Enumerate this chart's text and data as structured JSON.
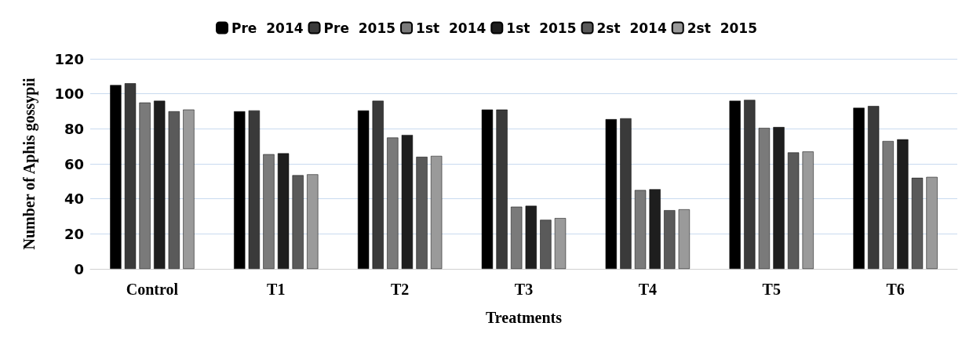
{
  "chart_data": {
    "type": "bar",
    "xlabel": "Treatments",
    "ylabel": "Number of Aphis gossypii",
    "categories": [
      "Control",
      "T1",
      "T2",
      "T3",
      "T4",
      "T5",
      "T6"
    ],
    "ylim": [
      0,
      120
    ],
    "yticks": [
      0,
      20,
      40,
      60,
      80,
      100,
      120
    ],
    "grid": "y",
    "legend": "top",
    "series": [
      {
        "name": "Pre  2014",
        "color": "#000000",
        "values": [
          105,
          90,
          90.5,
          91,
          85.5,
          96,
          92
        ]
      },
      {
        "name": "Pre  2015",
        "color": "#3a3a3a",
        "values": [
          106,
          90.5,
          96,
          91,
          86,
          96.5,
          93
        ]
      },
      {
        "name": "1st  2014",
        "color": "#7a7a7a",
        "values": [
          95,
          65.5,
          75,
          35.5,
          45,
          80.5,
          73
        ]
      },
      {
        "name": "1st  2015",
        "color": "#1e1e1e",
        "values": [
          96,
          66,
          76.5,
          36,
          45.5,
          81,
          74
        ]
      },
      {
        "name": "2st  2014",
        "color": "#5a5a5a",
        "values": [
          90,
          53.5,
          64,
          28,
          33.5,
          66.5,
          52
        ]
      },
      {
        "name": "2st  2015",
        "color": "#9a9a9a",
        "values": [
          91,
          54,
          64.5,
          29,
          34,
          67,
          52.5
        ]
      }
    ]
  }
}
